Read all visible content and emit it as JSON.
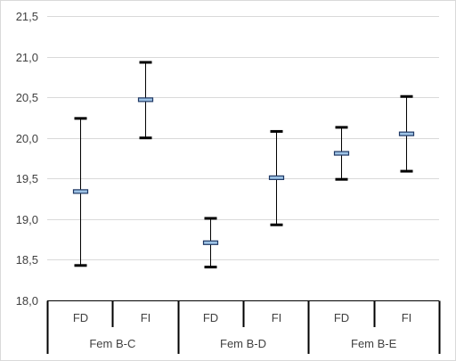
{
  "chart_data": {
    "type": "error-bar",
    "title": "",
    "xlabel": "",
    "ylabel": "",
    "ylim": [
      18.0,
      21.5
    ],
    "y_ticks": [
      "18,0",
      "18,5",
      "19,0",
      "19,5",
      "20,0",
      "20,5",
      "21,0",
      "21,5"
    ],
    "y_tick_values": [
      18.0,
      18.5,
      19.0,
      19.5,
      20.0,
      20.5,
      21.0,
      21.5
    ],
    "grid": true,
    "groups": [
      {
        "label": "Fem B-C",
        "items": [
          {
            "label": "FD",
            "mean": 19.34,
            "low": 18.43,
            "high": 20.24
          },
          {
            "label": "FI",
            "mean": 20.47,
            "low": 20.0,
            "high": 20.93
          }
        ]
      },
      {
        "label": "Fem B-D",
        "items": [
          {
            "label": "FD",
            "mean": 18.71,
            "low": 18.41,
            "high": 19.01
          },
          {
            "label": "FI",
            "mean": 19.51,
            "low": 18.93,
            "high": 20.08
          }
        ]
      },
      {
        "label": "Fem B-E",
        "items": [
          {
            "label": "FD",
            "mean": 19.81,
            "low": 19.49,
            "high": 20.13
          },
          {
            "label": "FI",
            "mean": 20.05,
            "low": 19.59,
            "high": 20.51
          }
        ]
      }
    ],
    "colors": {
      "whisker": "#000000",
      "mean_fill": "#9dc3e6",
      "mean_stroke": "#1f3864",
      "grid": "#d9d9d9",
      "axis": "#000000",
      "text": "#404040"
    }
  }
}
